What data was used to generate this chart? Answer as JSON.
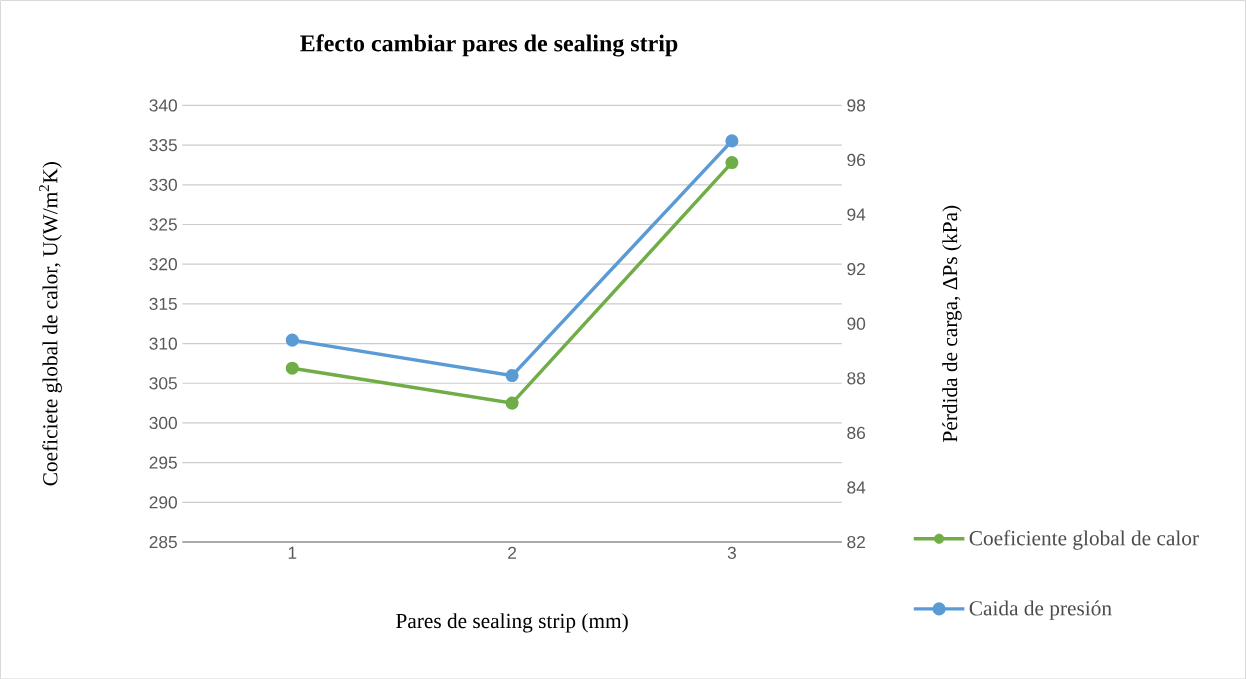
{
  "chart_data": {
    "type": "line",
    "title": "Efecto cambiar pares de sealing strip",
    "xlabel": "Pares de sealing strip (mm)",
    "ylabel": "Coeficiete global de calor, U(W/m$^{2}$K)",
    "y2label": "Pérdida de carga, ΔPs (kPa)",
    "categories": [
      "1",
      "2",
      "3"
    ],
    "series": [
      {
        "name": "Coeficiente global de calor",
        "color": "#70ad47",
        "values": [
          306.9,
          302.5,
          332.8
        ],
        "axis": "y"
      },
      {
        "name": "Caida de presión",
        "color": "#5b9bd5",
        "values": [
          89.4,
          88.1,
          96.7
        ],
        "axis": "y2"
      }
    ],
    "ylim": [
      285,
      340
    ],
    "yticks": [
      285,
      290,
      295,
      300,
      305,
      310,
      315,
      320,
      325,
      330,
      335,
      340
    ],
    "y2lim": [
      82,
      98
    ],
    "y2ticks": [
      82,
      84,
      86,
      88,
      90,
      92,
      94,
      96,
      98
    ],
    "grid": "y",
    "legend": "right",
    "marker": "circle",
    "line_style": "solid"
  }
}
